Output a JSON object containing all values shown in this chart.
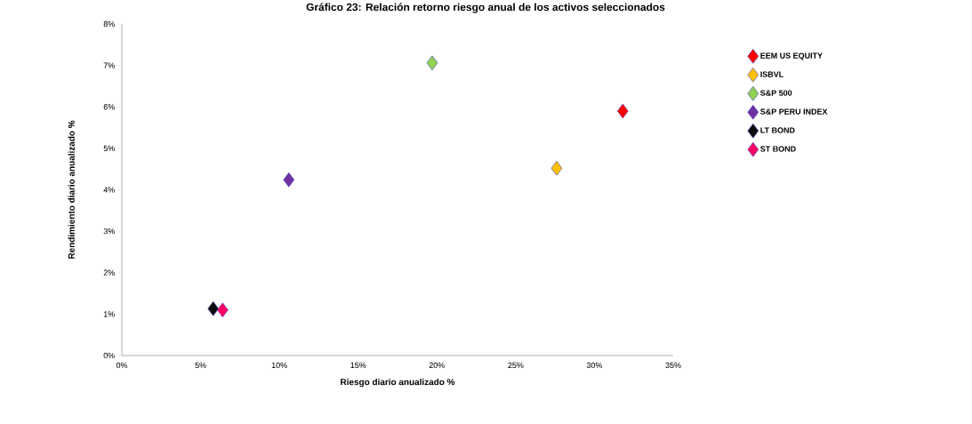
{
  "chart_data": {
    "type": "scatter",
    "title": "Gráfico 23: Relación retorno riesgo anual de los activos seleccionados",
    "xlabel": "Riesgo diario anualizado %",
    "ylabel": "Rendimiento diario anualizado %",
    "marker": "diamond",
    "legend": "right",
    "grid": false,
    "xlim": [
      0,
      35
    ],
    "ylim": [
      0,
      8
    ],
    "xticks": [
      {
        "value": 0,
        "label": "0%"
      },
      {
        "value": 5,
        "label": "5%"
      },
      {
        "value": 10,
        "label": "10%"
      },
      {
        "value": 15,
        "label": "15%"
      },
      {
        "value": 20,
        "label": "20%"
      },
      {
        "value": 25,
        "label": "25%"
      },
      {
        "value": 30,
        "label": "30%"
      },
      {
        "value": 35,
        "label": "35%"
      }
    ],
    "yticks": [
      {
        "value": 0,
        "label": "0%"
      },
      {
        "value": 1,
        "label": "1%"
      },
      {
        "value": 2,
        "label": "2%"
      },
      {
        "value": 3,
        "label": "3%"
      },
      {
        "value": 4,
        "label": "4%"
      },
      {
        "value": 5,
        "label": "5%"
      },
      {
        "value": 6,
        "label": "6%"
      },
      {
        "value": 7,
        "label": "7%"
      },
      {
        "value": 8,
        "label": "8%"
      }
    ],
    "series": [
      {
        "name": "EEM US EQUITY",
        "color": "#ff0000",
        "x": [
          31.8
        ],
        "values": [
          5.9
        ]
      },
      {
        "name": "ISBVL",
        "color": "#ffc000",
        "x": [
          27.6
        ],
        "values": [
          4.52
        ]
      },
      {
        "name": "S&P 500",
        "color": "#92d050",
        "x": [
          19.7
        ],
        "values": [
          7.06
        ]
      },
      {
        "name": "S&P PERU INDEX",
        "color": "#7030a0",
        "x": [
          10.6
        ],
        "values": [
          4.24
        ]
      },
      {
        "name": "LT BOND",
        "color": "#0d0d0d",
        "x": [
          5.8
        ],
        "values": [
          1.13
        ]
      },
      {
        "name": "ST BOND",
        "color": "#ff0066",
        "x": [
          6.4
        ],
        "values": [
          1.1
        ]
      }
    ]
  }
}
